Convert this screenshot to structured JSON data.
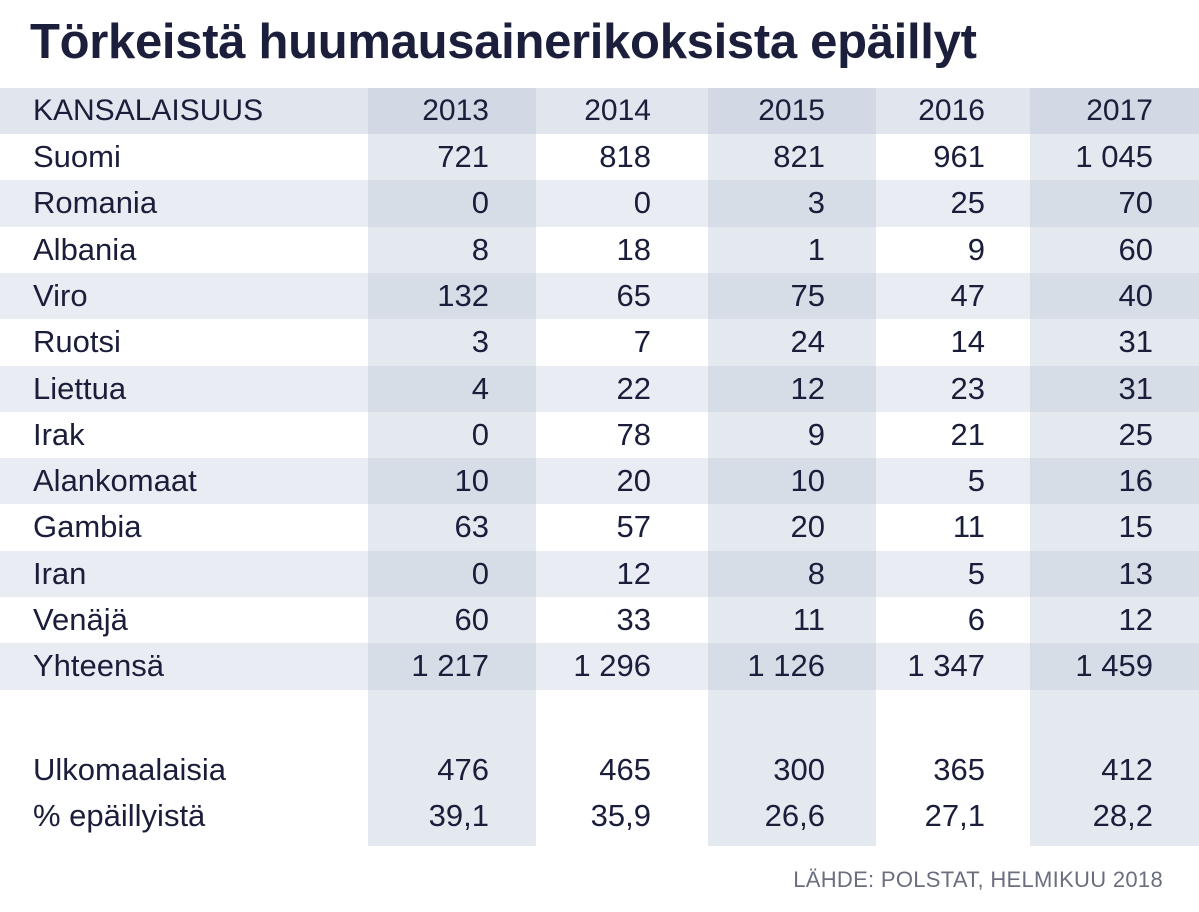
{
  "title": "Törkeistä huumausainerikoksista epäillyt",
  "source": "LÄHDE: POLSTAT, HELMIKUU 2018",
  "colors": {
    "title": "#1c1f3b",
    "text": "#1b1e3a",
    "row_stripe": "#e9ecf2",
    "col_stripe": "#d5dbe6",
    "header": "#e1e5ed",
    "source": "#6b6e7e"
  },
  "chart_data": {
    "type": "table",
    "title": "Törkeistä huumausainerikoksista epäillyt",
    "columns": [
      "KANSALAISUUS",
      "2013",
      "2014",
      "2015",
      "2016",
      "2017"
    ],
    "rows": [
      {
        "label": "Suomi",
        "values": [
          "721",
          "818",
          "821",
          "961",
          "1 045"
        ]
      },
      {
        "label": "Romania",
        "values": [
          "0",
          "0",
          "3",
          "25",
          "70"
        ]
      },
      {
        "label": "Albania",
        "values": [
          "8",
          "18",
          "1",
          "9",
          "60"
        ]
      },
      {
        "label": "Viro",
        "values": [
          "132",
          "65",
          "75",
          "47",
          "40"
        ]
      },
      {
        "label": "Ruotsi",
        "values": [
          "3",
          "7",
          "24",
          "14",
          "31"
        ]
      },
      {
        "label": "Liettua",
        "values": [
          "4",
          "22",
          "12",
          "23",
          "31"
        ]
      },
      {
        "label": "Irak",
        "values": [
          "0",
          "78",
          "9",
          "21",
          "25"
        ]
      },
      {
        "label": "Alankomaat",
        "values": [
          "10",
          "20",
          "10",
          "5",
          "16"
        ]
      },
      {
        "label": "Gambia",
        "values": [
          "63",
          "57",
          "20",
          "11",
          "15"
        ]
      },
      {
        "label": "Iran",
        "values": [
          "0",
          "12",
          "8",
          "5",
          "13"
        ]
      },
      {
        "label": "Venäjä",
        "values": [
          "60",
          "33",
          "11",
          "6",
          "12"
        ]
      },
      {
        "label": "Yhteensä",
        "values": [
          "1 217",
          "1 296",
          "1 126",
          "1 347",
          "1 459"
        ]
      }
    ],
    "footer_rows": [
      {
        "label": "Ulkomaalaisia",
        "values": [
          "476",
          "465",
          "300",
          "365",
          "412"
        ]
      },
      {
        "label": "% epäillyistä",
        "values": [
          "39,1",
          "35,9",
          "26,6",
          "27,1",
          "28,2"
        ]
      }
    ]
  }
}
